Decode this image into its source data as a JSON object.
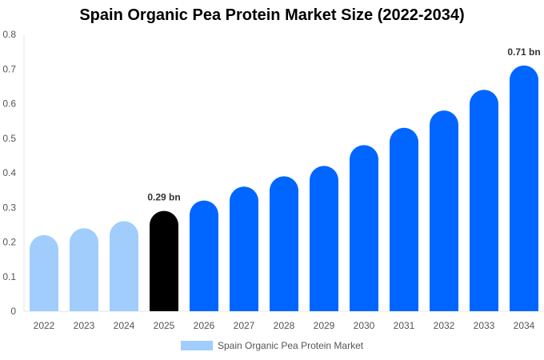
{
  "chart_data": {
    "type": "bar",
    "title": "Spain Organic Pea Protein Market Size (2022-2034)",
    "categories": [
      "2022",
      "2023",
      "2024",
      "2025",
      "2026",
      "2027",
      "2028",
      "2029",
      "2030",
      "2031",
      "2032",
      "2033",
      "2034"
    ],
    "series": [
      {
        "name": "Spain Organic Pea Protein Market",
        "values": [
          0.22,
          0.24,
          0.26,
          0.29,
          0.32,
          0.36,
          0.39,
          0.42,
          0.48,
          0.53,
          0.58,
          0.64,
          0.71
        ]
      }
    ],
    "data_labels": {
      "3": "0.29 bn",
      "12": "0.71 bn"
    },
    "bar_colors": {
      "historical": "#a0cdfc",
      "base_year": "#000000",
      "forecast": "#0066ff"
    },
    "base_year_index": 3,
    "ylim": [
      0,
      0.8
    ],
    "yticks": [
      "0",
      "0.1",
      "0.2",
      "0.3",
      "0.4",
      "0.5",
      "0.6",
      "0.7",
      "0.8"
    ],
    "xlabel": "",
    "ylabel": "",
    "grid": false,
    "legend_position": "bottom"
  }
}
